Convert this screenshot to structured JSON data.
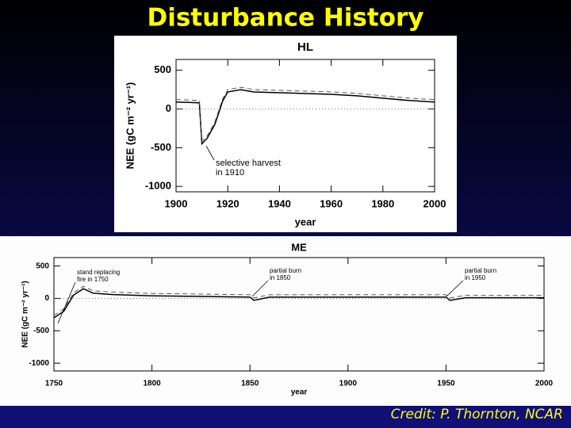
{
  "title": "Disturbance History",
  "credit": "Credit:  P. Thornton, NCAR",
  "chart_data": [
    {
      "type": "line",
      "title": "HL",
      "xlabel": "year",
      "ylabel": "NEE (gC m⁻² yr⁻¹)",
      "x": [
        1900,
        1905,
        1909,
        1910,
        1912,
        1915,
        1918,
        1920,
        1925,
        1930,
        1940,
        1950,
        1960,
        1970,
        1980,
        1990,
        2000
      ],
      "series": [
        {
          "color": "#000000",
          "values": [
            90,
            85,
            80,
            -450,
            -380,
            -200,
            100,
            220,
            250,
            220,
            210,
            200,
            190,
            170,
            140,
            110,
            90
          ]
        }
      ],
      "xlim": [
        1900,
        2000
      ],
      "xticks": [
        1900,
        1920,
        1940,
        1960,
        1980,
        2000
      ],
      "ylim": [
        -1070,
        640
      ],
      "yticks": [
        500,
        0,
        -500,
        -1000
      ],
      "annotations": [
        [
          "selective harvest",
          "in 1910"
        ]
      ]
    },
    {
      "type": "line",
      "title": "ME",
      "xlabel": "year",
      "ylabel": "NEE (gC m⁻² yr⁻¹)",
      "x": [
        1750,
        1755,
        1760,
        1765,
        1770,
        1780,
        1800,
        1850,
        1852,
        1860,
        1900,
        1950,
        1952,
        1960,
        2000
      ],
      "series": [
        {
          "color": "#000000",
          "values": [
            -300,
            -200,
            50,
            150,
            80,
            60,
            40,
            20,
            -30,
            20,
            20,
            20,
            -30,
            10,
            10
          ]
        }
      ],
      "xlim": [
        1750,
        2000
      ],
      "xticks": [
        1750,
        1800,
        1850,
        1900,
        1950,
        2000
      ],
      "ylim": [
        -1120,
        630
      ],
      "yticks": [
        500,
        0,
        -500,
        -1000
      ],
      "annotations": [
        [
          "stand replacing",
          "fire in 1750"
        ],
        [
          "partial burn",
          "in 1850"
        ],
        [
          "partial burn",
          "in 1950"
        ]
      ]
    }
  ]
}
